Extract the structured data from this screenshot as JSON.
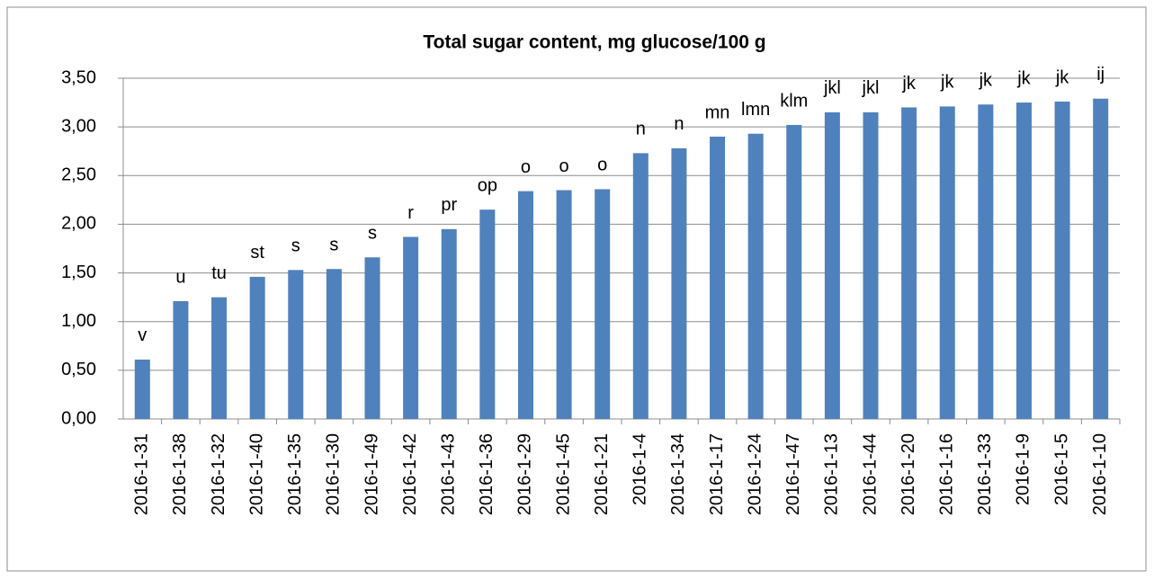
{
  "chart_data": {
    "type": "bar",
    "title": "Total sugar content, mg glucose/100 g",
    "categories": [
      "2016-1-31",
      "2016-1-38",
      "2016-1-32",
      "2016-1-40",
      "2016-1-35",
      "2016-1-30",
      "2016-1-49",
      "2016-1-42",
      "2016-1-43",
      "2016-1-36",
      "2016-1-29",
      "2016-1-45",
      "2016-1-21",
      "2016-1-4",
      "2016-1-34",
      "2016-1-17",
      "2016-1-24",
      "2016-1-47",
      "2016-1-13",
      "2016-1-44",
      "2016-1-20",
      "2016-1-16",
      "2016-1-33",
      "2016-1-9",
      "2016-1-5",
      "2016-1-10"
    ],
    "values": [
      0.61,
      1.21,
      1.25,
      1.46,
      1.53,
      1.54,
      1.66,
      1.87,
      1.95,
      2.15,
      2.34,
      2.35,
      2.36,
      2.73,
      2.78,
      2.9,
      2.93,
      3.02,
      3.15,
      3.15,
      3.2,
      3.21,
      3.23,
      3.25,
      3.26,
      3.29
    ],
    "annotations": [
      "v",
      "u",
      "tu",
      "st",
      "s",
      "s",
      "s",
      "r",
      "pr",
      "op",
      "o",
      "o",
      "o",
      "n",
      "n",
      "mn",
      "lmn",
      "klm",
      "jkl",
      "jkl",
      "jk",
      "jk",
      "jk",
      "jk",
      "jk",
      "ij"
    ],
    "color": "#4f81bd",
    "ylim": [
      0,
      3.5
    ],
    "yticks": [
      {
        "value": 0,
        "label": "0,00"
      },
      {
        "value": 0.5,
        "label": "0,50"
      },
      {
        "value": 1,
        "label": "1,00"
      },
      {
        "value": 1.5,
        "label": "1,50"
      },
      {
        "value": 2,
        "label": "2,00"
      },
      {
        "value": 2.5,
        "label": "2,50"
      },
      {
        "value": 3,
        "label": "3,00"
      },
      {
        "value": 3.5,
        "label": "3,50"
      }
    ],
    "grid": true
  }
}
